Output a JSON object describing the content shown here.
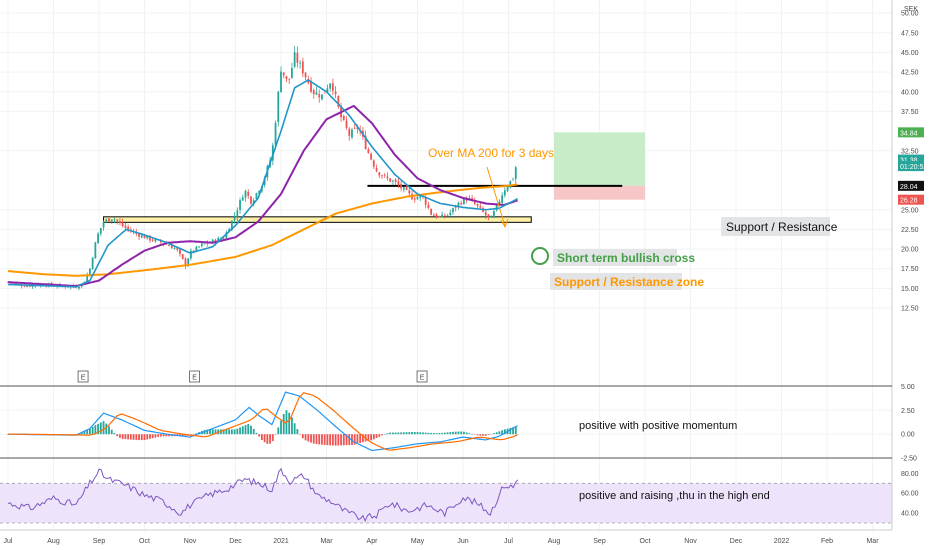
{
  "chart_data": {
    "type": "candlestick",
    "currency": "SEK",
    "price_axis": {
      "ticks": [
        "50.00",
        "47.50",
        "45.00",
        "42.50",
        "40.00",
        "37.50",
        "32.50",
        "25.00",
        "22.50",
        "20.00",
        "17.50",
        "15.00",
        "12.50"
      ],
      "tick_values": [
        50,
        47.5,
        45,
        42.5,
        40,
        37.5,
        32.5,
        25,
        22.5,
        20,
        17.5,
        15,
        12.5
      ],
      "ylim": [
        11.5,
        51
      ]
    },
    "price_labels": [
      {
        "text": "34.84",
        "value": 34.84,
        "color": "#4caf50"
      },
      {
        "text": "31.38",
        "value": 31.38,
        "color": "#26a69a"
      },
      {
        "text": "01:20:52",
        "value": 30.55,
        "color": "#26a69a"
      },
      {
        "text": "28.04",
        "value": 28.04,
        "color": "#111111"
      },
      {
        "text": "26.28",
        "value": 26.28,
        "color": "#ef5350"
      }
    ],
    "time_axis": [
      "Jul",
      "Aug",
      "Sep",
      "Oct",
      "Nov",
      "Dec",
      "2021",
      "Mar",
      "Apr",
      "May",
      "Jun",
      "Jul",
      "Aug",
      "Sep",
      "Oct",
      "Nov",
      "Dec",
      "2022",
      "Feb",
      "Mar"
    ],
    "price_anchors": [
      {
        "m": 0,
        "c": 15.8
      },
      {
        "m": 0.4,
        "c": 15.3
      },
      {
        "m": 0.8,
        "c": 15.5
      },
      {
        "m": 1.2,
        "c": 15.3
      },
      {
        "m": 1.5,
        "c": 15.2
      },
      {
        "m": 1.65,
        "c": 15.6
      },
      {
        "m": 1.8,
        "c": 17.5
      },
      {
        "m": 1.95,
        "c": 21.5
      },
      {
        "m": 2.1,
        "c": 23.5
      },
      {
        "m": 2.3,
        "c": 24.0
      },
      {
        "m": 2.55,
        "c": 22.8
      },
      {
        "m": 2.8,
        "c": 22.0
      },
      {
        "m": 3.1,
        "c": 21.3
      },
      {
        "m": 3.4,
        "c": 20.8
      },
      {
        "m": 3.7,
        "c": 20.0
      },
      {
        "m": 3.9,
        "c": 18.0
      },
      {
        "m": 4.0,
        "c": 19.5
      },
      {
        "m": 4.25,
        "c": 20.5
      },
      {
        "m": 4.5,
        "c": 21.0
      },
      {
        "m": 4.75,
        "c": 21.5
      },
      {
        "m": 5.0,
        "c": 24.5
      },
      {
        "m": 5.2,
        "c": 27.5
      },
      {
        "m": 5.35,
        "c": 26.0
      },
      {
        "m": 5.6,
        "c": 28.5
      },
      {
        "m": 5.8,
        "c": 32.0
      },
      {
        "m": 6.0,
        "c": 43.0
      },
      {
        "m": 6.15,
        "c": 41.0
      },
      {
        "m": 6.3,
        "c": 44.5
      },
      {
        "m": 6.5,
        "c": 42.5
      },
      {
        "m": 6.7,
        "c": 40.0
      },
      {
        "m": 6.9,
        "c": 39.5
      },
      {
        "m": 7.1,
        "c": 41.5
      },
      {
        "m": 7.3,
        "c": 37.0
      },
      {
        "m": 7.5,
        "c": 34.5
      },
      {
        "m": 7.7,
        "c": 35.5
      },
      {
        "m": 7.9,
        "c": 32.5
      },
      {
        "m": 8.1,
        "c": 30.0
      },
      {
        "m": 8.3,
        "c": 29.0
      },
      {
        "m": 8.5,
        "c": 28.5
      },
      {
        "m": 8.7,
        "c": 27.5
      },
      {
        "m": 8.9,
        "c": 26.5
      },
      {
        "m": 9.1,
        "c": 26.8
      },
      {
        "m": 9.3,
        "c": 24.5
      },
      {
        "m": 9.5,
        "c": 24.0
      },
      {
        "m": 9.7,
        "c": 24.5
      },
      {
        "m": 9.9,
        "c": 25.8
      },
      {
        "m": 10.1,
        "c": 26.5
      },
      {
        "m": 10.3,
        "c": 25.5
      },
      {
        "m": 10.5,
        "c": 24.3
      },
      {
        "m": 10.6,
        "c": 23.7
      },
      {
        "m": 10.75,
        "c": 25.5
      },
      {
        "m": 10.9,
        "c": 27.5
      },
      {
        "m": 11.0,
        "c": 28.3
      },
      {
        "m": 11.1,
        "c": 29.0
      },
      {
        "m": 11.2,
        "c": 31.38
      }
    ],
    "ma200_anchors": [
      {
        "m": 0,
        "v": 17.2
      },
      {
        "m": 0.8,
        "v": 16.8
      },
      {
        "m": 1.5,
        "v": 16.6
      },
      {
        "m": 2.2,
        "v": 16.8
      },
      {
        "m": 3.0,
        "v": 17.3
      },
      {
        "m": 4.0,
        "v": 18.0
      },
      {
        "m": 5.0,
        "v": 19.0
      },
      {
        "m": 5.8,
        "v": 20.5
      },
      {
        "m": 6.5,
        "v": 22.5
      },
      {
        "m": 7.2,
        "v": 24.5
      },
      {
        "m": 8.0,
        "v": 25.8
      },
      {
        "m": 8.8,
        "v": 26.7
      },
      {
        "m": 9.6,
        "v": 27.3
      },
      {
        "m": 10.4,
        "v": 27.8
      },
      {
        "m": 10.9,
        "v": 28.0
      },
      {
        "m": 11.2,
        "v": 28.2
      }
    ],
    "ma_purple_anchors": [
      {
        "m": 0,
        "v": 15.8
      },
      {
        "m": 1.5,
        "v": 15.3
      },
      {
        "m": 2.0,
        "v": 16.0
      },
      {
        "m": 2.5,
        "v": 18.0
      },
      {
        "m": 3.0,
        "v": 19.8
      },
      {
        "m": 3.5,
        "v": 20.8
      },
      {
        "m": 4.0,
        "v": 21.0
      },
      {
        "m": 4.5,
        "v": 20.8
      },
      {
        "m": 5.0,
        "v": 21.5
      },
      {
        "m": 5.5,
        "v": 23.5
      },
      {
        "m": 6.0,
        "v": 27.0
      },
      {
        "m": 6.5,
        "v": 32.5
      },
      {
        "m": 7.0,
        "v": 36.5
      },
      {
        "m": 7.6,
        "v": 38.2
      },
      {
        "m": 8.0,
        "v": 36.0
      },
      {
        "m": 8.5,
        "v": 32.0
      },
      {
        "m": 9.0,
        "v": 29.0
      },
      {
        "m": 9.5,
        "v": 27.5
      },
      {
        "m": 10.0,
        "v": 26.5
      },
      {
        "m": 10.5,
        "v": 25.8
      },
      {
        "m": 10.9,
        "v": 25.6
      },
      {
        "m": 11.2,
        "v": 26.2
      }
    ],
    "ma_cyan_anchors": [
      {
        "m": 0,
        "v": 15.5
      },
      {
        "m": 1.5,
        "v": 15.2
      },
      {
        "m": 1.8,
        "v": 16.0
      },
      {
        "m": 2.2,
        "v": 20.5
      },
      {
        "m": 2.6,
        "v": 22.5
      },
      {
        "m": 3.0,
        "v": 21.8
      },
      {
        "m": 3.5,
        "v": 20.8
      },
      {
        "m": 4.0,
        "v": 19.5
      },
      {
        "m": 4.5,
        "v": 20.3
      },
      {
        "m": 5.0,
        "v": 23.0
      },
      {
        "m": 5.5,
        "v": 26.5
      },
      {
        "m": 6.0,
        "v": 35.0
      },
      {
        "m": 6.3,
        "v": 40.5
      },
      {
        "m": 6.6,
        "v": 41.5
      },
      {
        "m": 7.0,
        "v": 40.0
      },
      {
        "m": 7.5,
        "v": 37.0
      },
      {
        "m": 8.0,
        "v": 33.0
      },
      {
        "m": 8.5,
        "v": 29.5
      },
      {
        "m": 9.0,
        "v": 27.0
      },
      {
        "m": 9.5,
        "v": 25.8
      },
      {
        "m": 10.0,
        "v": 25.3
      },
      {
        "m": 10.5,
        "v": 25.0
      },
      {
        "m": 10.8,
        "v": 25.2
      },
      {
        "m": 11.2,
        "v": 26.4
      }
    ],
    "trade_box": {
      "m_start": 12.0,
      "m_end": 14.0,
      "entry": 28.04,
      "target": 34.84,
      "stop": 26.28,
      "target_color": "#c8ebc8",
      "stop_color": "#f7c6c6"
    },
    "resistance_line": {
      "value": 28.04,
      "m_start": 7.9,
      "m_end": 13.5
    },
    "support_zone": {
      "low": 23.4,
      "high": 24.1,
      "m_start": 2.1,
      "m_end": 11.5,
      "fill": "#fdf1a8"
    },
    "earnings_markers": [
      {
        "label": "E",
        "m": 1.65
      },
      {
        "label": "E",
        "m": 4.1
      },
      {
        "label": "E",
        "m": 9.1
      }
    ],
    "annotations": {
      "ma200_note": "Over MA 200 for 3 days",
      "support_resistance": "Support / Resistance",
      "bullish_cross": "Short term bullish cross",
      "support_zone": "Support / Resistance zone",
      "macd_note": "positive with positive momentum",
      "rsi_note": "positive and raising ,thu in the high end"
    },
    "macd_axis": {
      "ticks": [
        "5.00",
        "2.50",
        "0.00",
        "-2.50"
      ],
      "tick_values": [
        5,
        2.5,
        0,
        -2.5
      ],
      "ylim": [
        -3.0,
        5.8
      ]
    },
    "macd_anchors": [
      {
        "m": 0,
        "v": 0.0
      },
      {
        "m": 1.5,
        "v": -0.1
      },
      {
        "m": 1.8,
        "v": 0.6
      },
      {
        "m": 2.1,
        "v": 2.2
      },
      {
        "m": 2.5,
        "v": 1.5
      },
      {
        "m": 3.0,
        "v": 0.4
      },
      {
        "m": 3.5,
        "v": 0.0
      },
      {
        "m": 4.0,
        "v": -0.3
      },
      {
        "m": 4.5,
        "v": 0.6
      },
      {
        "m": 5.0,
        "v": 1.5
      },
      {
        "m": 5.3,
        "v": 2.8
      },
      {
        "m": 5.5,
        "v": 2.0
      },
      {
        "m": 5.8,
        "v": 1.0
      },
      {
        "m": 6.1,
        "v": 4.4
      },
      {
        "m": 6.4,
        "v": 4.0
      },
      {
        "m": 6.8,
        "v": 2.5
      },
      {
        "m": 7.2,
        "v": 0.8
      },
      {
        "m": 7.6,
        "v": -0.8
      },
      {
        "m": 8.0,
        "v": -1.7
      },
      {
        "m": 8.5,
        "v": -1.4
      },
      {
        "m": 9.0,
        "v": -1.0
      },
      {
        "m": 9.5,
        "v": -0.8
      },
      {
        "m": 10.0,
        "v": -0.3
      },
      {
        "m": 10.5,
        "v": -0.6
      },
      {
        "m": 10.8,
        "v": -0.2
      },
      {
        "m": 11.2,
        "v": 0.9
      }
    ],
    "rsi_axis": {
      "ticks": [
        "80.00",
        "60.00",
        "40.00"
      ],
      "tick_values": [
        80,
        60,
        40
      ],
      "ylim": [
        25,
        90
      ],
      "band": [
        30,
        70
      ]
    },
    "rsi_anchors": [
      {
        "m": 0,
        "v": 50
      },
      {
        "m": 0.5,
        "v": 45
      },
      {
        "m": 1.0,
        "v": 55
      },
      {
        "m": 1.5,
        "v": 48
      },
      {
        "m": 1.8,
        "v": 70
      },
      {
        "m": 2.0,
        "v": 82
      },
      {
        "m": 2.2,
        "v": 74
      },
      {
        "m": 2.6,
        "v": 68
      },
      {
        "m": 3.0,
        "v": 58
      },
      {
        "m": 3.4,
        "v": 52
      },
      {
        "m": 3.8,
        "v": 40
      },
      {
        "m": 4.0,
        "v": 48
      },
      {
        "m": 4.4,
        "v": 58
      },
      {
        "m": 4.8,
        "v": 64
      },
      {
        "m": 5.2,
        "v": 74
      },
      {
        "m": 5.5,
        "v": 70
      },
      {
        "m": 5.8,
        "v": 64
      },
      {
        "m": 6.0,
        "v": 84
      },
      {
        "m": 6.2,
        "v": 72
      },
      {
        "m": 6.5,
        "v": 78
      },
      {
        "m": 6.8,
        "v": 58
      },
      {
        "m": 7.1,
        "v": 52
      },
      {
        "m": 7.4,
        "v": 42
      },
      {
        "m": 7.8,
        "v": 34
      },
      {
        "m": 8.1,
        "v": 38
      },
      {
        "m": 8.4,
        "v": 50
      },
      {
        "m": 8.8,
        "v": 42
      },
      {
        "m": 9.2,
        "v": 48
      },
      {
        "m": 9.6,
        "v": 40
      },
      {
        "m": 10.0,
        "v": 56
      },
      {
        "m": 10.3,
        "v": 50
      },
      {
        "m": 10.6,
        "v": 40
      },
      {
        "m": 10.9,
        "v": 68
      },
      {
        "m": 11.1,
        "v": 66
      },
      {
        "m": 11.2,
        "v": 74
      }
    ],
    "colors": {
      "up": "#26a69a",
      "down": "#ef5350",
      "ma200": "#ff9800",
      "ma_purple": "#8e24aa",
      "ma_cyan": "#2196c8",
      "macd_line": "#2196f3",
      "signal_line": "#ff6d00",
      "rsi_line": "#7e57c2",
      "rsi_band": "#ede4fb",
      "annotation_orange": "#ff9800",
      "annotation_green": "#43a047",
      "grid": "#f0f3f5"
    }
  }
}
